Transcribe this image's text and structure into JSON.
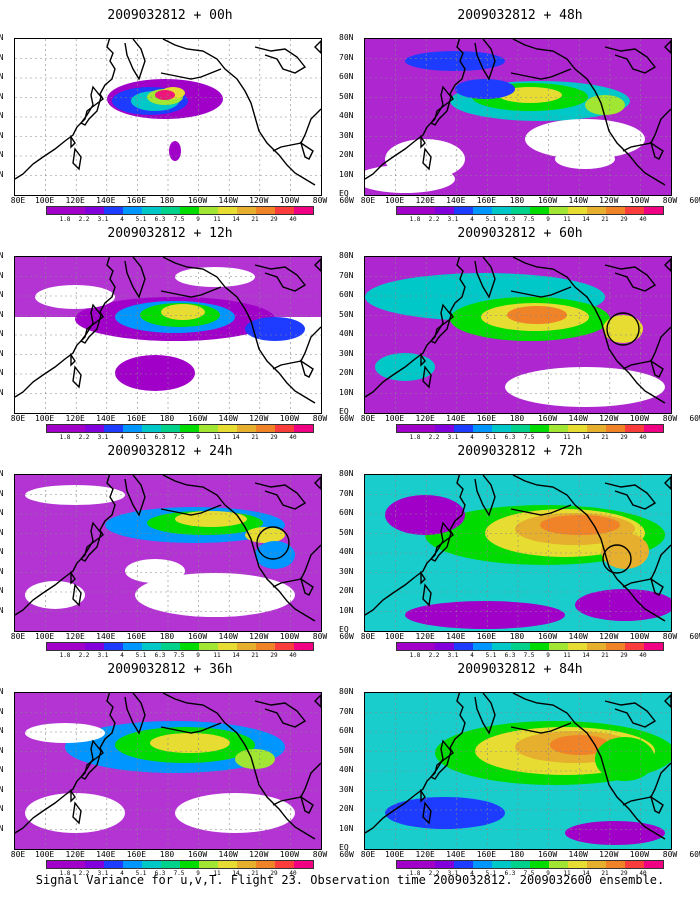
{
  "panels": [
    {
      "title": "2009032812 + 00h"
    },
    {
      "title": "2009032812 + 48h"
    },
    {
      "title": "2009032812 + 12h"
    },
    {
      "title": "2009032812 + 60h"
    },
    {
      "title": "2009032812 + 24h"
    },
    {
      "title": "2009032812 + 72h"
    },
    {
      "title": "2009032812 + 36h"
    },
    {
      "title": "2009032812 + 84h"
    }
  ],
  "lat_labels": [
    "80N",
    "70N",
    "60N",
    "50N",
    "40N",
    "30N",
    "20N",
    "10N",
    "EQ"
  ],
  "lon_labels": [
    "80E",
    "100E",
    "120E",
    "140E",
    "160E",
    "180",
    "160W",
    "140W",
    "120W",
    "100W",
    "80W",
    "60W"
  ],
  "colorbar": {
    "levels": [
      "1.8",
      "2.2",
      "3.1",
      "4",
      "5.1",
      "6.3",
      "7.5",
      "9",
      "11",
      "14",
      "21",
      "29",
      "40"
    ],
    "colors": [
      "#a000c8",
      "#8200dc",
      "#1e3cff",
      "#0096ff",
      "#00c8c8",
      "#00d28c",
      "#00dc00",
      "#a0e632",
      "#e6dc32",
      "#e6af2d",
      "#f08228",
      "#fa3c3c",
      "#f00082"
    ]
  },
  "caption": "Signal Variance for u,v,T. Flight 23. Observation time 2009032812. 2009032600 ensemble."
}
